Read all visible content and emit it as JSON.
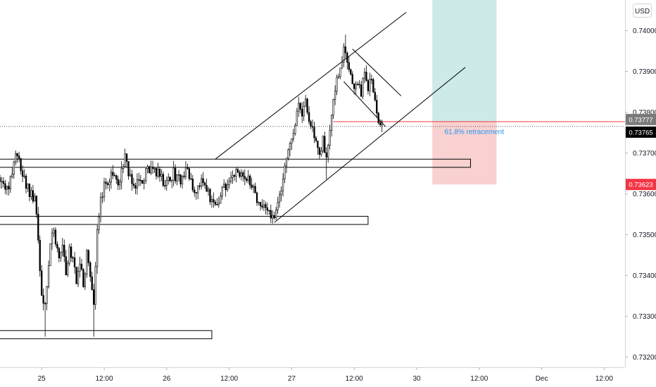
{
  "currency_label": "USD",
  "colors": {
    "background": "#ffffff",
    "candle": "#000000",
    "profit_zone": "#b2dfdb",
    "loss_zone": "#f8c6c6",
    "target_line": "#f23645",
    "annotation": "#2196f3",
    "price_label_dark": "#000000",
    "price_label_red": "#f23645",
    "price_label_gray": "#7a7a7a"
  },
  "chart_data": {
    "type": "candlestick",
    "y_axis": {
      "range": [
        0.73175,
        0.74075
      ],
      "ticks": [
        "0.73200",
        "0.73300",
        "0.73400",
        "0.73500",
        "0.73600",
        "0.73700",
        "0.73800",
        "0.73900",
        "0.74000"
      ]
    },
    "x_axis": {
      "range": [
        0,
        180
      ],
      "ticks": [
        {
          "label": "25",
          "x": 12
        },
        {
          "label": "12:00",
          "x": 30
        },
        {
          "label": "26",
          "x": 48
        },
        {
          "label": "12:00",
          "x": 66
        },
        {
          "label": "27",
          "x": 84
        },
        {
          "label": "12:00",
          "x": 102
        },
        {
          "label": "30",
          "x": 120
        },
        {
          "label": "12:00",
          "x": 138
        },
        {
          "label": "Dec",
          "x": 156
        },
        {
          "label": "12:00",
          "x": 174
        }
      ]
    },
    "anchors": [
      [
        0,
        0.7364
      ],
      [
        2,
        0.7361
      ],
      [
        4,
        0.7367
      ],
      [
        5,
        0.737
      ],
      [
        6,
        0.7365
      ],
      [
        8,
        0.7361
      ],
      [
        10,
        0.7359
      ],
      [
        11,
        0.735
      ],
      [
        12,
        0.7335
      ],
      [
        13,
        0.7333
      ],
      [
        14,
        0.7343
      ],
      [
        15,
        0.7351
      ],
      [
        16,
        0.7349
      ],
      [
        17,
        0.7344
      ],
      [
        18,
        0.7348
      ],
      [
        19,
        0.7339
      ],
      [
        20,
        0.7347
      ],
      [
        21,
        0.7343
      ],
      [
        22,
        0.7339
      ],
      [
        23,
        0.7344
      ],
      [
        24,
        0.7337
      ],
      [
        25,
        0.7345
      ],
      [
        26,
        0.734
      ],
      [
        27,
        0.7333
      ],
      [
        28,
        0.7351
      ],
      [
        29,
        0.7358
      ],
      [
        30,
        0.7363
      ],
      [
        31,
        0.7362
      ],
      [
        32,
        0.7366
      ],
      [
        33,
        0.7364
      ],
      [
        34,
        0.7361
      ],
      [
        35,
        0.7366
      ],
      [
        36,
        0.7369
      ],
      [
        37,
        0.7365
      ],
      [
        38,
        0.7363
      ],
      [
        40,
        0.7362
      ],
      [
        42,
        0.7365
      ],
      [
        44,
        0.7367
      ],
      [
        46,
        0.7364
      ],
      [
        48,
        0.7362
      ],
      [
        50,
        0.7365
      ],
      [
        52,
        0.7363
      ],
      [
        54,
        0.7366
      ],
      [
        56,
        0.7361
      ],
      [
        58,
        0.7363
      ],
      [
        60,
        0.736
      ],
      [
        62,
        0.7357
      ],
      [
        64,
        0.7361
      ],
      [
        66,
        0.7362
      ],
      [
        68,
        0.7366
      ],
      [
        70,
        0.7364
      ],
      [
        72,
        0.7363
      ],
      [
        74,
        0.7358
      ],
      [
        76,
        0.7356
      ],
      [
        78,
        0.7355
      ],
      [
        79,
        0.7354
      ],
      [
        80,
        0.7358
      ],
      [
        81,
        0.7362
      ],
      [
        82,
        0.7367
      ],
      [
        83,
        0.7371
      ],
      [
        84,
        0.7374
      ],
      [
        85,
        0.7378
      ],
      [
        86,
        0.7382
      ],
      [
        87,
        0.738
      ],
      [
        88,
        0.7384
      ],
      [
        89,
        0.7378
      ],
      [
        90,
        0.7376
      ],
      [
        91,
        0.7372
      ],
      [
        92,
        0.737
      ],
      [
        93,
        0.7373
      ],
      [
        94,
        0.7368
      ],
      [
        95,
        0.7375
      ],
      [
        96,
        0.7383
      ],
      [
        97,
        0.7388
      ],
      [
        98,
        0.7391
      ],
      [
        99,
        0.7395
      ],
      [
        100,
        0.7393
      ],
      [
        101,
        0.739
      ],
      [
        102,
        0.7386
      ],
      [
        103,
        0.7388
      ],
      [
        104,
        0.7385
      ],
      [
        105,
        0.7389
      ],
      [
        106,
        0.7386
      ],
      [
        107,
        0.7388
      ],
      [
        108,
        0.7384
      ],
      [
        109,
        0.7378
      ],
      [
        110,
        0.73777
      ]
    ],
    "zones": [
      {
        "name": "resistance-box",
        "x": [
          -1,
          135.5
        ],
        "y": [
          0.73665,
          0.73685
        ]
      },
      {
        "name": "mid-support-box",
        "x": [
          -1,
          106
        ],
        "y": [
          0.73525,
          0.73545
        ]
      },
      {
        "name": "low-support-box",
        "x": [
          -1,
          61
        ],
        "y": [
          0.73245,
          0.73265
        ]
      }
    ],
    "lines": [
      {
        "name": "channel-upper-line",
        "from": [
          62,
          0.73685
        ],
        "to": [
          117,
          0.74045
        ]
      },
      {
        "name": "channel-lower-line",
        "from": [
          79,
          0.7353
        ],
        "to": [
          134,
          0.7391
        ]
      },
      {
        "name": "flag-upper-line",
        "from": [
          101.5,
          0.73955
        ],
        "to": [
          115.5,
          0.7384
        ]
      },
      {
        "name": "flag-lower-line",
        "from": [
          99,
          0.73875
        ],
        "to": [
          111,
          0.73765
        ]
      }
    ],
    "position": {
      "x": [
        124.5,
        143
      ],
      "entry": 0.73777,
      "take_profit": 0.74075,
      "stop_loss": 0.73623,
      "target_line": {
        "x": [
          96,
          180
        ],
        "y": 0.73777
      }
    },
    "annotation": {
      "text": "61.8% retracement",
      "x": 128,
      "y": 0.7376
    },
    "price_labels": [
      {
        "value": "0.73777",
        "style": "gray"
      },
      {
        "value": "0.73765",
        "style": "dark"
      },
      {
        "value": "0.73623",
        "style": "red"
      }
    ],
    "last_price_line": 0.73765
  }
}
